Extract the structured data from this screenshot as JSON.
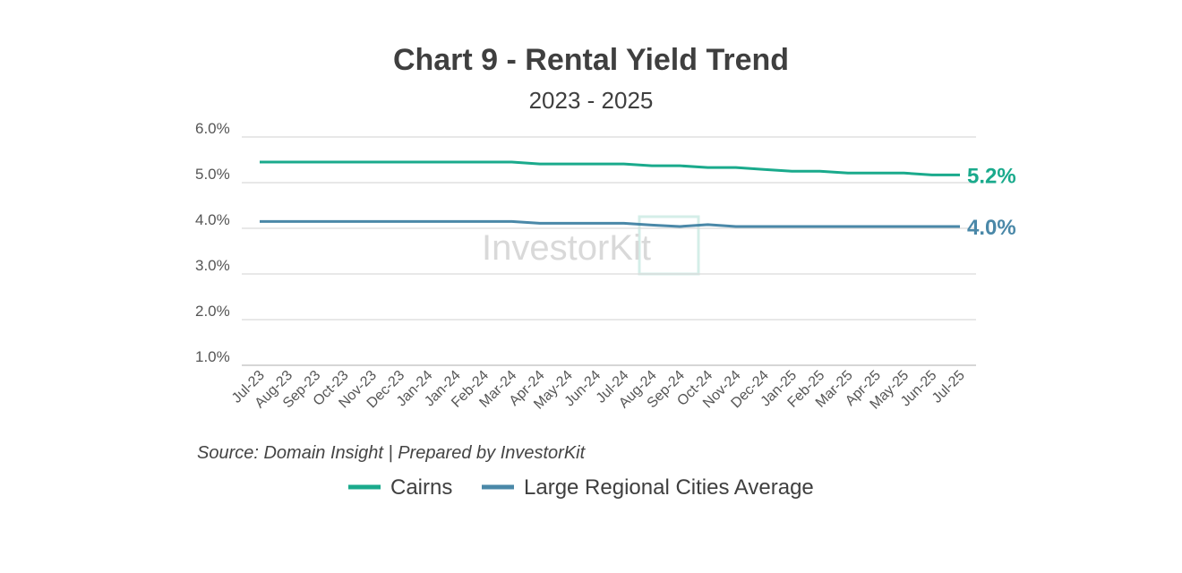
{
  "chart_data": {
    "type": "line",
    "title": "Chart 9 - Rental Yield Trend",
    "subtitle": "2023 - 2025",
    "source": "Source: Domain Insight | Prepared by InvestorKit",
    "watermark": "InvestorKit",
    "y_ticks": [
      "1.0%",
      "2.0%",
      "3.0%",
      "4.0%",
      "5.0%",
      "6.0%"
    ],
    "ylim": [
      1.0,
      6.0
    ],
    "grid": true,
    "legend_position": "bottom",
    "categories": [
      "Jul-23",
      "Aug-23",
      "Sep-23",
      "Oct-23",
      "Nov-23",
      "Dec-23",
      "Jan-24",
      "Jan-24",
      "Feb-24",
      "Mar-24",
      "Apr-24",
      "May-24",
      "Jun-24",
      "Jul-24",
      "Aug-24",
      "Sep-24",
      "Oct-24",
      "Nov-24",
      "Dec-24",
      "Jan-25",
      "Feb-25",
      "Mar-25",
      "Apr-25",
      "May-25",
      "Jun-25",
      "Jul-25"
    ],
    "series": [
      {
        "name": "Cairns",
        "color": "#1aaa8c",
        "end_label": "5.2%",
        "values": [
          5.45,
          5.45,
          5.45,
          5.45,
          5.45,
          5.45,
          5.45,
          5.45,
          5.45,
          5.45,
          5.41,
          5.41,
          5.41,
          5.41,
          5.37,
          5.37,
          5.33,
          5.33,
          5.29,
          5.25,
          5.25,
          5.21,
          5.21,
          5.21,
          5.17,
          5.17
        ]
      },
      {
        "name": "Large Regional Cities Average",
        "color": "#4a88a8",
        "end_label": "4.0%",
        "values": [
          4.15,
          4.15,
          4.15,
          4.15,
          4.15,
          4.15,
          4.15,
          4.15,
          4.15,
          4.15,
          4.11,
          4.11,
          4.11,
          4.11,
          4.07,
          4.04,
          4.08,
          4.04,
          4.04,
          4.04,
          4.04,
          4.04,
          4.04,
          4.04,
          4.04,
          4.04
        ]
      }
    ]
  }
}
